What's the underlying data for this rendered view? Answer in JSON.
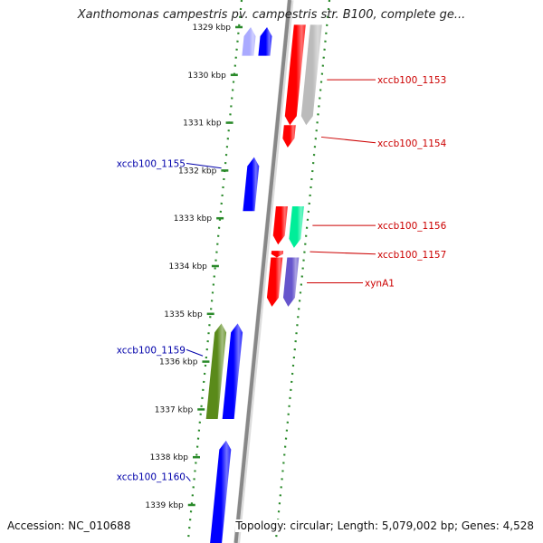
{
  "title": "Xanthomonas campestris pv. campestris str. B100, complete ge...",
  "footer": {
    "accession": "Accession: NC_010688",
    "topology": "Topology: circular; Length: 5,079,002 bp; Genes: 4,528"
  },
  "axis": {
    "ticks": [
      "1329 kbp",
      "1330 kbp",
      "1331 kbp",
      "1332 kbp",
      "1333 kbp",
      "1334 kbp",
      "1335 kbp",
      "1336 kbp",
      "1337 kbp",
      "1338 kbp",
      "1339 kbp"
    ],
    "first_kbp": 1329,
    "last_kbp": 1339
  },
  "genes": [
    {
      "strand": "forward",
      "track": 1,
      "start_kbp": 1328.95,
      "end_kbp": 1331.05,
      "color": "#ff0000",
      "label": ""
    },
    {
      "strand": "forward",
      "track": 2,
      "start_kbp": 1328.95,
      "end_kbp": 1331.05,
      "color": "#bbbbbb",
      "label": ""
    },
    {
      "strand": "forward",
      "track": 1,
      "start_kbp": 1331.05,
      "end_kbp": 1331.52,
      "color": "#ff0000",
      "label": ""
    },
    {
      "strand": "forward",
      "track": 1,
      "start_kbp": 1332.75,
      "end_kbp": 1333.55,
      "color": "#ff0000",
      "label": ""
    },
    {
      "strand": "forward",
      "track": 2,
      "start_kbp": 1332.75,
      "end_kbp": 1333.62,
      "color": "#00ee99",
      "label": ""
    },
    {
      "strand": "forward",
      "track": 1,
      "start_kbp": 1333.68,
      "end_kbp": 1333.82,
      "color": "#ff0000",
      "label": ""
    },
    {
      "strand": "forward",
      "track": 1,
      "start_kbp": 1333.82,
      "end_kbp": 1334.85,
      "color": "#ff0000",
      "label": ""
    },
    {
      "strand": "forward",
      "track": 2,
      "start_kbp": 1333.82,
      "end_kbp": 1334.85,
      "color": "#6655cc",
      "label": ""
    },
    {
      "strand": "reverse",
      "track": 1,
      "start_kbp": 1329.0,
      "end_kbp": 1329.6,
      "color": "#0000ff",
      "label": ""
    },
    {
      "strand": "reverse",
      "track": 2,
      "start_kbp": 1329.0,
      "end_kbp": 1329.6,
      "color": "#aaaaff",
      "label": ""
    },
    {
      "strand": "reverse",
      "track": 1,
      "start_kbp": 1331.72,
      "end_kbp": 1332.85,
      "color": "#0000ff",
      "label": ""
    },
    {
      "strand": "reverse",
      "track": 2,
      "start_kbp": 1335.2,
      "end_kbp": 1337.2,
      "color": "#5a8a1a",
      "label": ""
    },
    {
      "strand": "reverse",
      "track": 1,
      "start_kbp": 1335.2,
      "end_kbp": 1337.2,
      "color": "#0000ff",
      "label": ""
    },
    {
      "strand": "reverse",
      "track": 1,
      "start_kbp": 1337.65,
      "end_kbp": 1340.0,
      "color": "#0000ff",
      "label": ""
    }
  ],
  "labels": [
    {
      "text": "xccb100_1153",
      "side": "right",
      "kbp": 1330.1,
      "anchor_kbp": 1330.1,
      "color": "#cc0000"
    },
    {
      "text": "xccb100_1154",
      "side": "right",
      "kbp": 1331.42,
      "anchor_kbp": 1331.3,
      "color": "#cc0000"
    },
    {
      "text": "xccb100_1156",
      "side": "right",
      "kbp": 1333.15,
      "anchor_kbp": 1333.15,
      "color": "#cc0000"
    },
    {
      "text": "xccb100_1157",
      "side": "right",
      "kbp": 1333.75,
      "anchor_kbp": 1333.7,
      "color": "#cc0000"
    },
    {
      "text": "xynA1",
      "side": "right",
      "kbp": 1334.35,
      "anchor_kbp": 1334.35,
      "color": "#cc0000"
    },
    {
      "text": "xccb100_1155",
      "side": "left",
      "kbp": 1331.85,
      "anchor_kbp": 1331.95,
      "color": "#0000aa"
    },
    {
      "text": "xccb100_1159",
      "side": "left",
      "kbp": 1335.75,
      "anchor_kbp": 1335.88,
      "color": "#0000aa"
    },
    {
      "text": "xccb100_1160",
      "side": "left",
      "kbp": 1338.4,
      "anchor_kbp": 1338.5,
      "color": "#0000aa"
    }
  ],
  "colors": {
    "backbone": "#888888",
    "dotted_ring": "#2a8a2a",
    "tick": "#2a8a2a",
    "label_forward": "#cc0000",
    "label_reverse": "#0000aa"
  }
}
